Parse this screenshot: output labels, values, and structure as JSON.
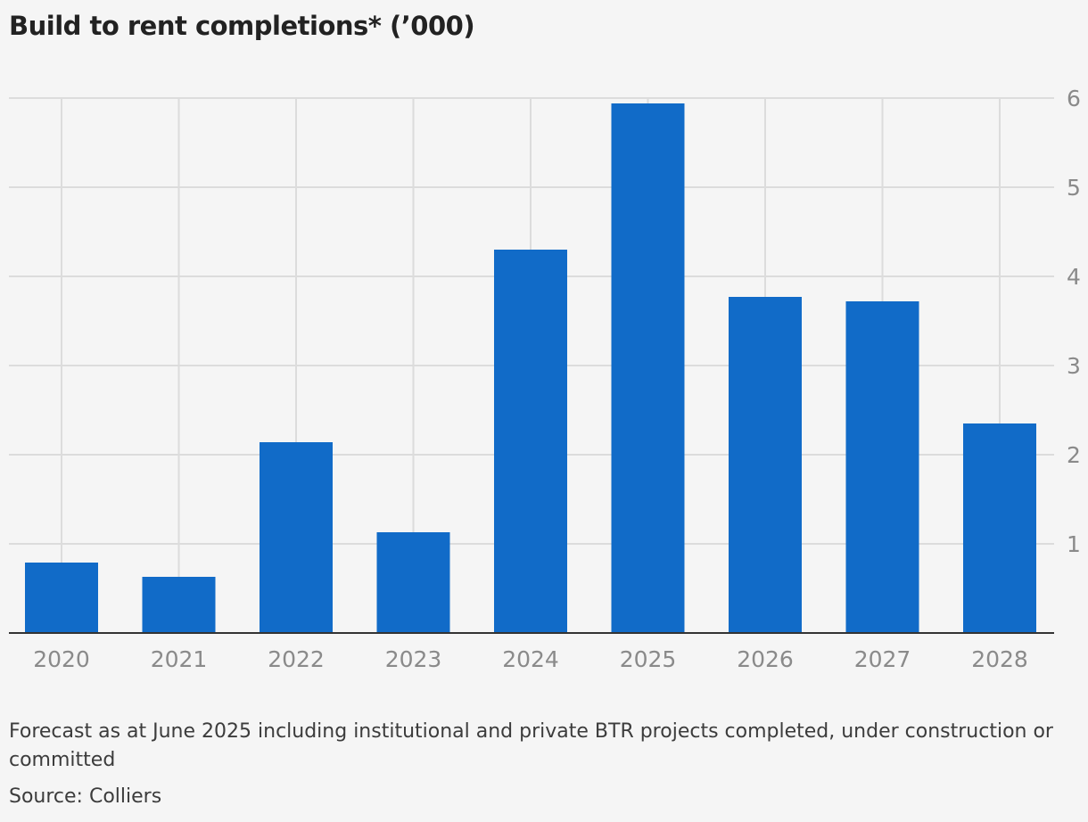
{
  "chart_data": {
    "type": "bar",
    "title": "Build to rent completions* (’000)",
    "categories": [
      "2020",
      "2021",
      "2022",
      "2023",
      "2024",
      "2025",
      "2026",
      "2027",
      "2028"
    ],
    "values": [
      0.79,
      0.63,
      2.14,
      1.13,
      4.3,
      5.94,
      3.77,
      3.72,
      2.35
    ],
    "y_ticks": [
      1,
      2,
      3,
      4,
      5,
      6
    ],
    "ylim": [
      0,
      6
    ],
    "y_axis_position": "right",
    "grid": true,
    "legend": "none",
    "bar_color": "#116bc8"
  },
  "note": "Forecast as at June 2025 including institutional and private BTR projects completed, under construction or committed",
  "source": "Source: Colliers"
}
